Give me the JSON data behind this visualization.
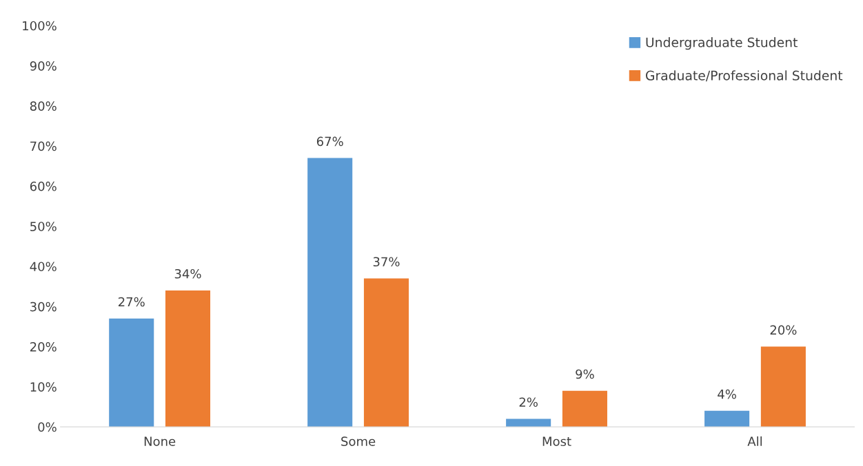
{
  "chart_data": {
    "type": "bar",
    "categories": [
      "None",
      "Some",
      "Most",
      "All"
    ],
    "series": [
      {
        "name": "Undergraduate Student",
        "color": "#5b9bd5",
        "values": [
          27,
          67,
          2,
          4
        ],
        "value_labels": [
          "27%",
          "67%",
          "2%",
          "4%"
        ]
      },
      {
        "name": "Graduate/Professional Student",
        "color": "#ed7d31",
        "values": [
          34,
          37,
          9,
          20
        ],
        "value_labels": [
          "34%",
          "37%",
          "9%",
          "20%"
        ]
      }
    ],
    "ylim": [
      0,
      100
    ],
    "yticks": [
      {
        "value": 0,
        "label": "0%"
      },
      {
        "value": 10,
        "label": "10%"
      },
      {
        "value": 20,
        "label": "20%"
      },
      {
        "value": 30,
        "label": "30%"
      },
      {
        "value": 40,
        "label": "40%"
      },
      {
        "value": 50,
        "label": "50%"
      },
      {
        "value": 60,
        "label": "60%"
      },
      {
        "value": 70,
        "label": "70%"
      },
      {
        "value": 80,
        "label": "80%"
      },
      {
        "value": 90,
        "label": "90%"
      },
      {
        "value": 100,
        "label": "100%"
      }
    ],
    "grid": false,
    "legend": "top right"
  }
}
